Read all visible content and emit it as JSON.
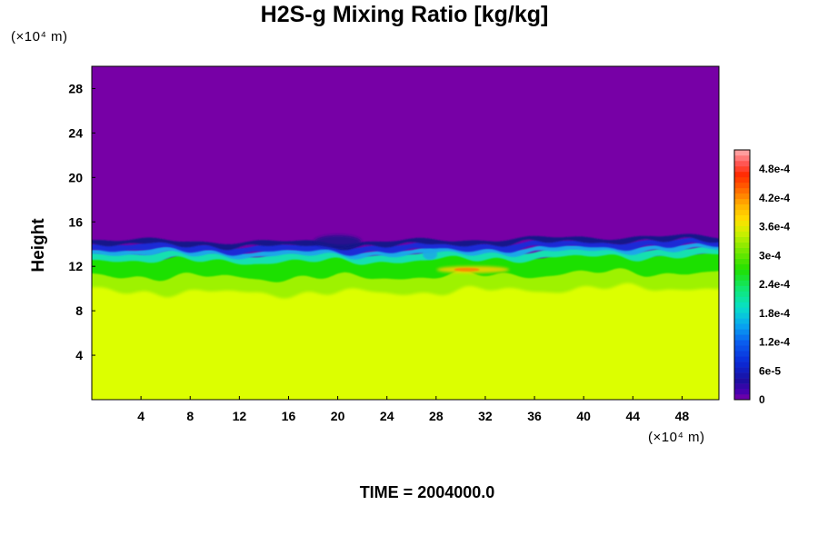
{
  "chart_data": {
    "type": "heatmap",
    "title": "H2S-g Mixing Ratio [kg/kg]",
    "ylabel": "Height",
    "x_unit": "(×10⁴ m)",
    "y_unit": "(×10⁴ m)",
    "xlim": [
      0,
      51
    ],
    "ylim": [
      0,
      30
    ],
    "x_ticks": [
      4,
      8,
      12,
      16,
      20,
      24,
      28,
      32,
      36,
      40,
      44,
      48
    ],
    "y_ticks": [
      4,
      8,
      12,
      16,
      20,
      24,
      28
    ],
    "time_label": "TIME = 2004000.0",
    "colorbar": {
      "min": 0,
      "max": 0.00052,
      "tick_labels": [
        "0",
        "6e-5",
        "1.2e-4",
        "1.8e-4",
        "2.4e-4",
        "3e-4",
        "3.6e-4",
        "4.2e-4",
        "4.8e-4"
      ],
      "tick_values": [
        0,
        6e-05,
        0.00012,
        0.00018,
        0.00024,
        0.0003,
        0.00036,
        0.00042,
        0.00048
      ]
    },
    "field_summary": {
      "lower_layer_value": 0.00034,
      "upper_layer_value": 0,
      "interface_height": 13.5
    },
    "colors": {
      "zero": "#7700a6",
      "lower_layer": "#dcff00",
      "transition": [
        "#14148a",
        "#1a2ad6",
        "#1da7e8",
        "#19e0b0",
        "#1fe000",
        "#9ef200",
        "#ffd000",
        "#ff7a00"
      ]
    }
  }
}
